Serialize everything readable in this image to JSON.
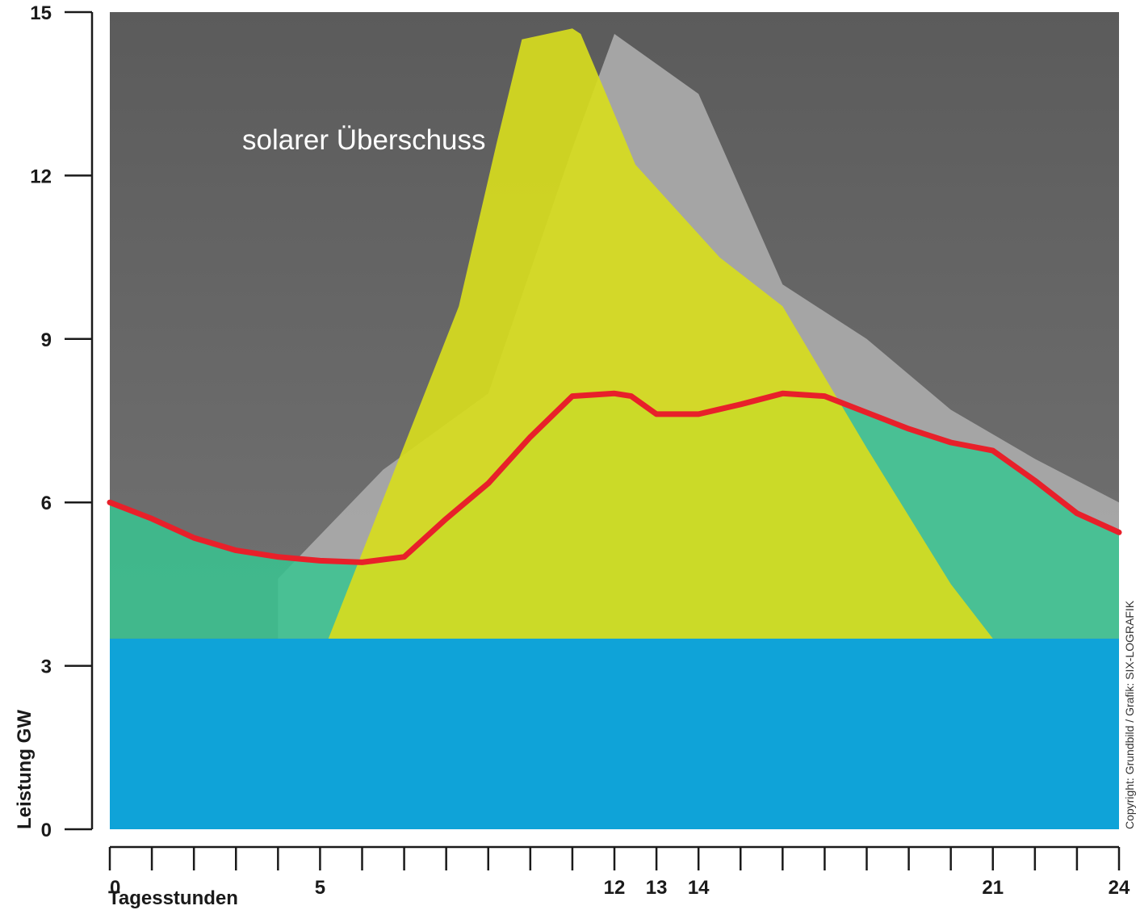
{
  "chart_data": {
    "type": "area",
    "xlabel": "Tagesstunden",
    "ylabel": "Leistung GW",
    "xlim": [
      0,
      24
    ],
    "ylim": [
      0,
      15
    ],
    "x_ticks": [
      0,
      5,
      12,
      13,
      14,
      21,
      24
    ],
    "y_ticks": [
      0,
      3,
      6,
      9,
      12,
      15
    ],
    "x_minor_step": 1,
    "annotation": "solarer Überschuss",
    "credit": "Copyright: Grundbild / Grafik: SIX-LOGRAFIK",
    "series": [
      {
        "kind": "line",
        "color": "#e8202a",
        "x": [
          0,
          1,
          2,
          3,
          4,
          5,
          6,
          7,
          8,
          9,
          10,
          11,
          12,
          12.4,
          13,
          14,
          15,
          16,
          17,
          18,
          19,
          20,
          21,
          22,
          23,
          24
        ],
        "y": [
          6.0,
          5.7,
          5.35,
          5.12,
          5.0,
          4.93,
          4.9,
          5.0,
          5.7,
          6.35,
          7.2,
          7.95,
          8.0,
          7.95,
          7.62,
          7.62,
          7.8,
          8.0,
          7.95,
          7.65,
          7.35,
          7.1,
          6.95,
          6.4,
          5.8,
          5.45
        ]
      },
      {
        "kind": "band",
        "color": "#0aa5dd",
        "x": [
          0,
          24
        ],
        "y_low": [
          0,
          0
        ],
        "y_high": [
          3.5,
          3.5
        ]
      },
      {
        "kind": "area",
        "color": "#38c490",
        "x": [
          0,
          1,
          2,
          3,
          4,
          5,
          6,
          7,
          8,
          9,
          10,
          11,
          12,
          13,
          14,
          15,
          16,
          17,
          18,
          19,
          20,
          21,
          22,
          23,
          24
        ],
        "y": [
          6.0,
          5.7,
          5.35,
          5.12,
          5.0,
          4.93,
          4.9,
          5.0,
          5.7,
          6.35,
          7.2,
          7.95,
          8.0,
          7.62,
          7.62,
          7.8,
          8.0,
          7.95,
          7.65,
          7.35,
          7.1,
          6.95,
          6.4,
          5.8,
          5.45
        ],
        "y_base": 3.5
      },
      {
        "kind": "area",
        "color": "#d7dc1e",
        "x": [
          5.2,
          8.3,
          9.2,
          9.8,
          11.0,
          11.2,
          11.8,
          12.5,
          14.5,
          16.0,
          18.0,
          20.0,
          21.0
        ],
        "y": [
          3.5,
          9.6,
          12.6,
          14.5,
          14.7,
          14.6,
          13.5,
          12.2,
          10.5,
          9.6,
          7.0,
          4.5,
          3.5
        ],
        "y_base": 3.5
      }
    ]
  }
}
